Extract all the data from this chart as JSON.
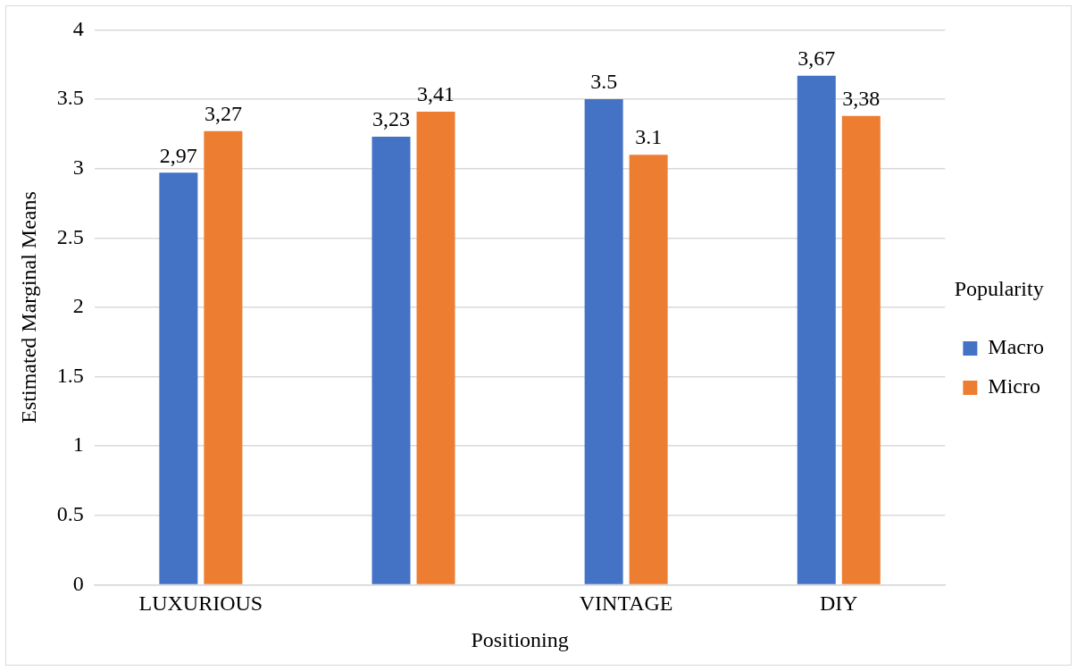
{
  "chart_data": {
    "type": "bar",
    "xlabel": "Positioning",
    "ylabel": "Estimated Marginal Means",
    "legend_title": "Popularity",
    "categories": [
      "LUXURIOUS",
      null,
      "VINTAGE",
      "DIY"
    ],
    "series": [
      {
        "name": "Macro",
        "color": "#4472c4",
        "values": [
          2.97,
          3.23,
          3.5,
          3.67
        ],
        "value_labels": [
          "2,97",
          "3,23",
          "3.5",
          "3,67"
        ]
      },
      {
        "name": "Micro",
        "color": "#ed7d31",
        "values": [
          3.27,
          3.41,
          3.1,
          3.38
        ],
        "value_labels": [
          "3,27",
          "3,41",
          "3.1",
          "3,38"
        ]
      }
    ],
    "ylim": [
      0,
      4
    ],
    "yticks": [
      0,
      0.5,
      1,
      1.5,
      2,
      2.5,
      3,
      3.5,
      4
    ],
    "grid": "y",
    "legend": "right"
  }
}
